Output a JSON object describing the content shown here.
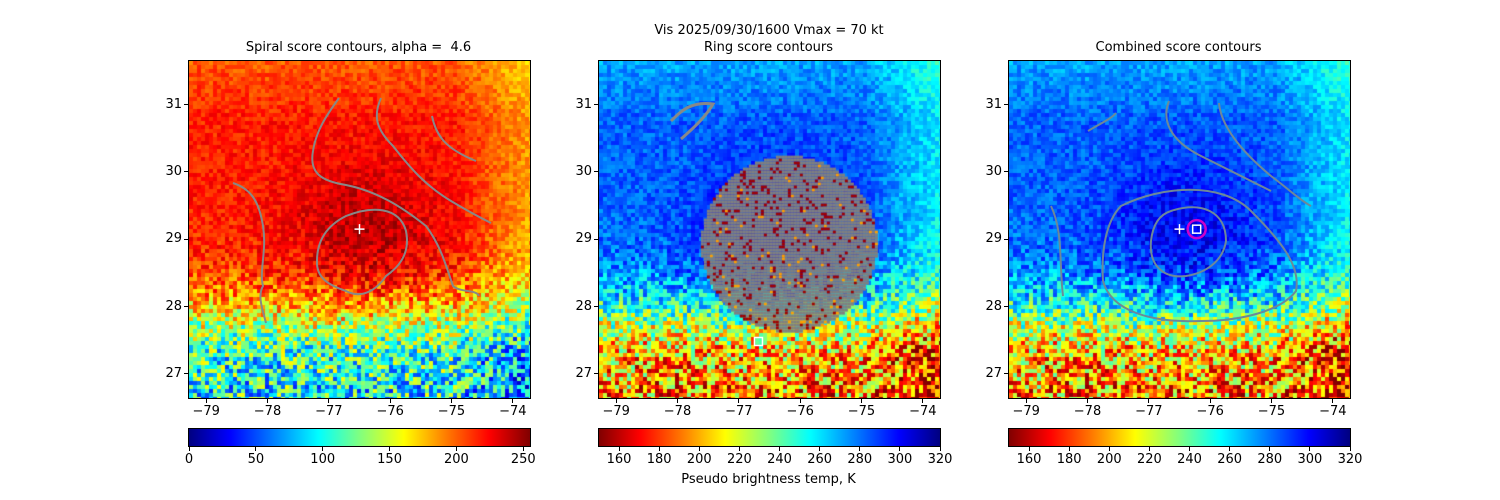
{
  "figure": {
    "suptitle": "Vis  2025/09/30/1600    Vmax = 70 kt"
  },
  "chart_data": [
    {
      "type": "heatmap",
      "title": "Spiral score contours, alpha =  4.6",
      "xlim": [
        -79.28,
        -73.72
      ],
      "ylim": [
        26.64,
        31.65
      ],
      "xticks": [
        -79,
        -78,
        -77,
        -76,
        -75,
        -74
      ],
      "yticks": [
        27,
        28,
        29,
        30,
        31
      ],
      "colorbar": {
        "range": [
          0,
          255
        ],
        "ticks": [
          0,
          50,
          100,
          150,
          200,
          250
        ],
        "label": "",
        "reversed": false
      },
      "markers": [
        {
          "type": "plus",
          "lon": -76.5,
          "lat": 29.15,
          "color": "#ffffff"
        }
      ]
    },
    {
      "type": "heatmap",
      "title": "Ring score contours",
      "xlim": [
        -79.28,
        -73.72
      ],
      "ylim": [
        26.64,
        31.65
      ],
      "xticks": [
        -79,
        -78,
        -77,
        -76,
        -75,
        -74
      ],
      "yticks": [
        27,
        28,
        29,
        30,
        31
      ],
      "colorbar": {
        "range": [
          150,
          320
        ],
        "ticks": [
          160,
          180,
          200,
          220,
          240,
          260,
          280,
          300,
          320
        ],
        "label": "Pseudo brightness temp, K",
        "reversed": true
      },
      "markers": [
        {
          "type": "square",
          "lon": -76.68,
          "lat": 27.48,
          "color": "#ffffff"
        }
      ]
    },
    {
      "type": "heatmap",
      "title": "Combined score contours",
      "xlim": [
        -79.28,
        -73.72
      ],
      "ylim": [
        26.64,
        31.65
      ],
      "xticks": [
        -79,
        -78,
        -77,
        -76,
        -75,
        -74
      ],
      "yticks": [
        27,
        28,
        29,
        30,
        31
      ],
      "colorbar": {
        "range": [
          150,
          320
        ],
        "ticks": [
          160,
          180,
          200,
          220,
          240,
          260,
          280,
          300,
          320
        ],
        "label": "",
        "reversed": true
      },
      "markers": [
        {
          "type": "plus",
          "lon": -76.5,
          "lat": 29.15,
          "color": "#ffffff"
        },
        {
          "type": "circle",
          "lon": -76.22,
          "lat": 29.15,
          "color": "#cc00cc"
        },
        {
          "type": "square",
          "lon": -76.22,
          "lat": 29.15,
          "color": "#ffffff"
        }
      ]
    }
  ]
}
